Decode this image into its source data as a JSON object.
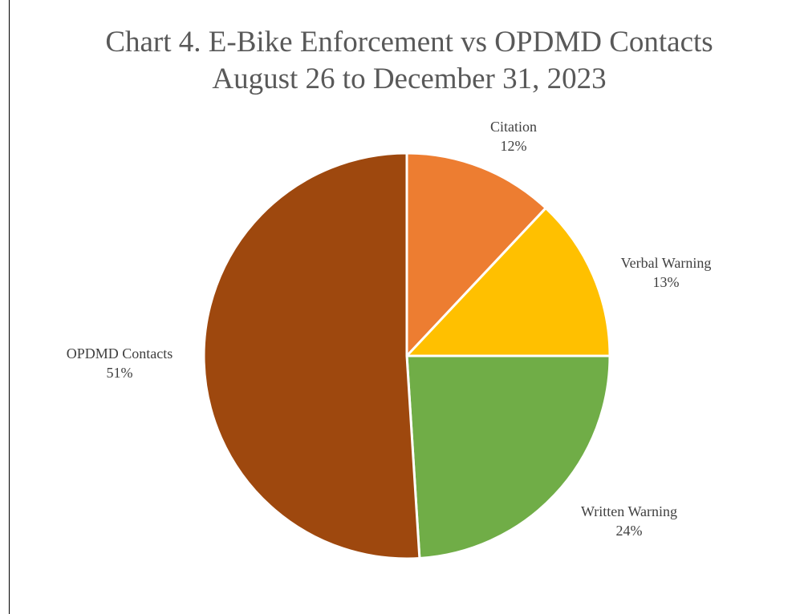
{
  "chart_data": {
    "type": "pie",
    "title": "Chart 4. E-Bike Enforcement vs OPDMD Contacts",
    "subtitle": "August 26 to December 31, 2023",
    "slices": [
      {
        "label": "Citation",
        "value": 12,
        "value_label": "12%",
        "color": "#ED7D31"
      },
      {
        "label": "Verbal Warning",
        "value": 13,
        "value_label": "13%",
        "color": "#FFC000"
      },
      {
        "label": "Written Warning",
        "value": 24,
        "value_label": "24%",
        "color": "#70AD47"
      },
      {
        "label": "OPDMD Contacts",
        "value": 51,
        "value_label": "51%",
        "color": "#9E480E"
      }
    ],
    "start": "12 o'clock",
    "direction": "clockwise",
    "legend": "none",
    "data_labels": "outside"
  }
}
